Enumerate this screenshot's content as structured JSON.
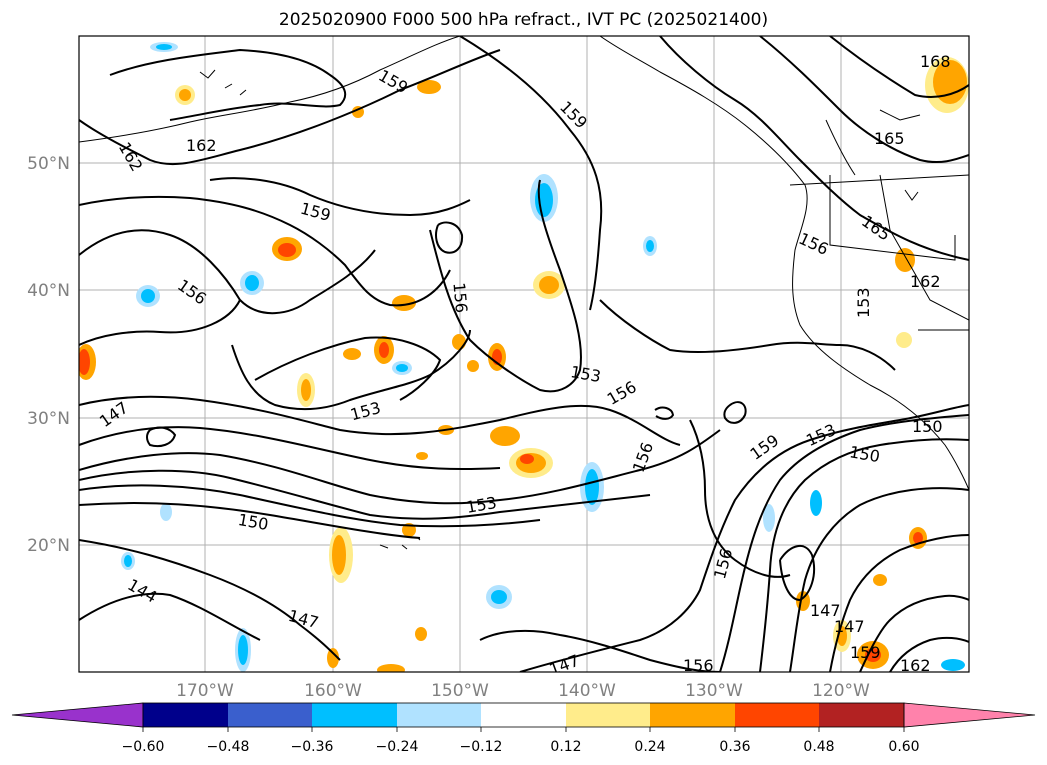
{
  "title": "2025020900 F000 500 hPa refract., IVT PC (2025021400)",
  "latitude_labels": [
    "50°N",
    "40°N",
    "30°N",
    "20°N"
  ],
  "longitude_labels": [
    "170°W",
    "160°W",
    "150°W",
    "140°W",
    "130°W",
    "120°W"
  ],
  "contour_labels": [
    "168",
    "159",
    "159",
    "162",
    "162",
    "165",
    "159",
    "156",
    "165",
    "162",
    "156",
    "153",
    "156",
    "153",
    "156",
    "147",
    "153",
    "159",
    "153",
    "150",
    "150",
    "156",
    "153",
    "150",
    "156",
    "144",
    "147",
    "147",
    "147",
    "147",
    "159",
    "156",
    "162"
  ],
  "colorbar": {
    "ticks": [
      "−0.60",
      "−0.48",
      "−0.36",
      "−0.24",
      "−0.12",
      "0.12",
      "0.24",
      "0.36",
      "0.48",
      "0.60"
    ],
    "colors": [
      "#9932cc",
      "#00008b",
      "#3a5fcd",
      "#00bfff",
      "#b0e2ff",
      "#ffffff",
      "#ffec8b",
      "#ffa500",
      "#ff4500",
      "#b22222",
      "#ff82ab"
    ]
  }
}
